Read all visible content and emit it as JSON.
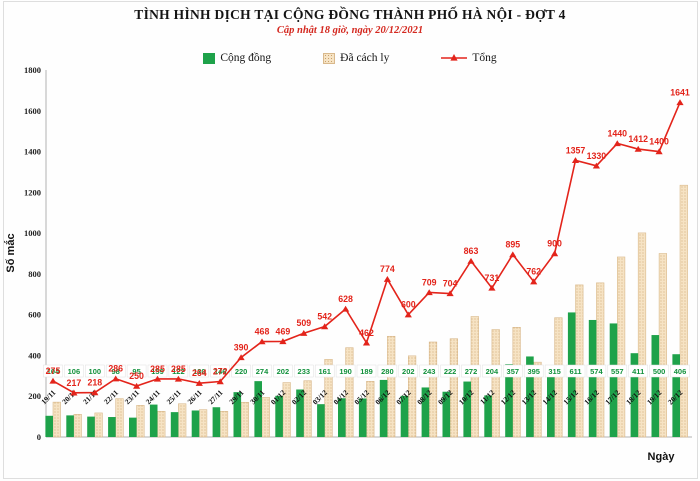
{
  "header": {
    "title": "TÌNH HÌNH DỊCH TẠI CỘNG ĐỒNG THÀNH PHỐ HÀ NỘI - ĐỢT 4",
    "subtitle": "Cập nhật 18 giờ, ngày 20/12/2021"
  },
  "legend": {
    "community": "Cộng đồng",
    "quarantined": "Đã cách ly",
    "total": "Tổng"
  },
  "axes": {
    "y_label": "Số mắc",
    "x_label": "Ngày",
    "y_ticks": [
      0,
      200,
      400,
      600,
      800,
      1000,
      1200,
      1400,
      1600,
      1800
    ]
  },
  "colors": {
    "community_green": "#1ea24a",
    "community_label_green": "#12913c",
    "quarantined_tan": "#f6e3c4",
    "quarantined_dot": "#c9a069",
    "quarantined_border": "#d9b98c",
    "total_red": "#e3241b",
    "subtitle_red": "#d4281f",
    "axis_gray": "#b3b3b3"
  },
  "chart_data": {
    "type": "bar",
    "title": "TÌNH HÌNH DỊCH TẠI CỘNG ĐỒNG THÀNH PHỐ HÀ NỘI - ĐỢT 4",
    "subtitle": "Cập nhật 18 giờ, ngày 20/12/2021",
    "xlabel": "Ngày",
    "ylabel": "Số mắc",
    "ylim": [
      0,
      1800
    ],
    "ytick_step": 200,
    "grid": false,
    "legend_position": "top",
    "categories": [
      "19/11",
      "20/11",
      "21/11",
      "22/11",
      "23/11",
      "24/11",
      "25/11",
      "26/11",
      "27/11",
      "29/11",
      "30/11",
      "01/12",
      "02/12",
      "03/12",
      "04/12",
      "05/12",
      "06/12",
      "07/12",
      "08/12",
      "09/12",
      "10/12",
      "11/12",
      "12/12",
      "13/12",
      "14/12",
      "15/12",
      "16/12",
      "17/12",
      "18/12",
      "19/12",
      "20/12"
    ],
    "series": [
      {
        "name": "Cộng đồng",
        "render": "bar",
        "color": "#1ea24a",
        "labels_shown": true,
        "values": [
          104,
          106,
          100,
          98,
          95,
          159,
          122,
          130,
          146,
          220,
          274,
          202,
          233,
          161,
          190,
          189,
          280,
          202,
          243,
          222,
          272,
          204,
          357,
          395,
          315,
          611,
          574,
          557,
          411,
          500,
          406
        ]
      },
      {
        "name": "Đã cách ly",
        "render": "bar",
        "color": "#f6e3c4",
        "labels_shown": false,
        "derived": true,
        "values": [
          171,
          111,
          118,
          188,
          155,
          126,
          163,
          134,
          126,
          170,
          194,
          267,
          276,
          381,
          438,
          273,
          494,
          398,
          466,
          482,
          591,
          527,
          538,
          367,
          585,
          746,
          756,
          883,
          1001,
          900,
          1235
        ]
      },
      {
        "name": "Tổng",
        "render": "line",
        "color": "#e3241b",
        "labels_shown": true,
        "values": [
          275,
          217,
          218,
          286,
          250,
          285,
          285,
          264,
          272,
          390,
          468,
          469,
          509,
          542,
          628,
          462,
          774,
          600,
          709,
          704,
          863,
          731,
          895,
          762,
          900,
          1357,
          1330,
          1440,
          1412,
          1400,
          1641
        ]
      }
    ]
  }
}
